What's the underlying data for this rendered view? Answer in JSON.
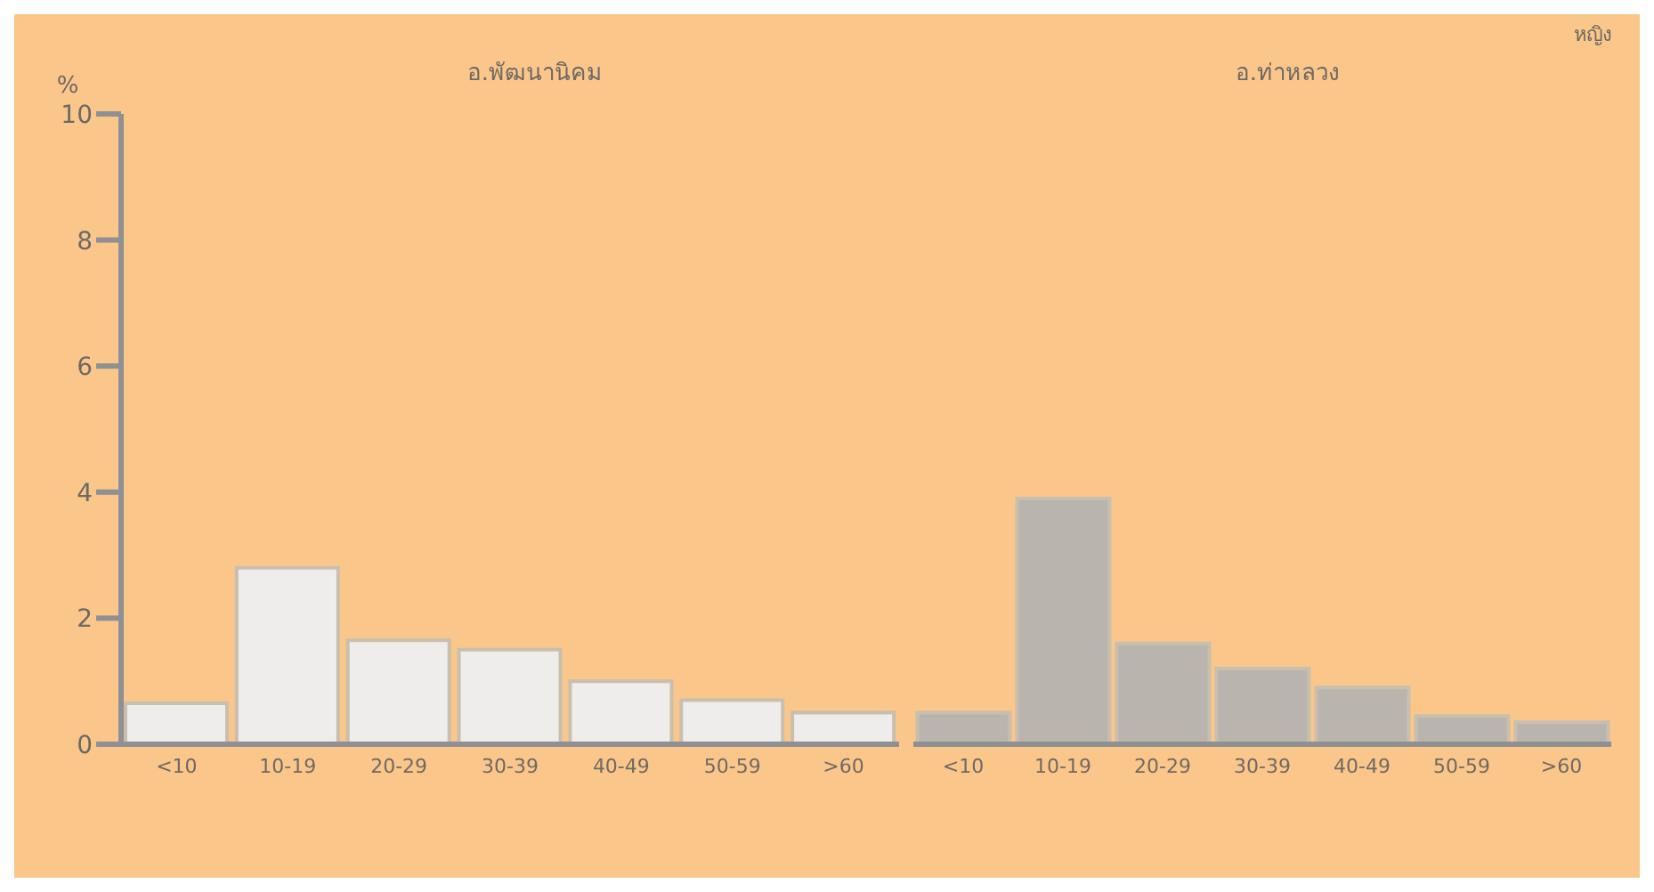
{
  "chart_data": [
    {
      "type": "bar",
      "title": "อ.พัฒนานิคม",
      "ylabel": "%",
      "categories": [
        "<10",
        "10-19",
        "20-29",
        "30-39",
        "40-49",
        "50-59",
        ">60"
      ],
      "values": [
        0.65,
        2.8,
        1.65,
        1.5,
        1.0,
        0.7,
        0.5
      ],
      "color": "#efedeb",
      "ylim": [
        0,
        10
      ],
      "yticks": [
        0,
        2,
        4,
        6,
        8,
        10
      ],
      "grid": false
    },
    {
      "type": "bar",
      "title": "อ.ท่าหลวง",
      "annotations": [
        "หญิง"
      ],
      "categories": [
        "<10",
        "10-19",
        "20-29",
        "30-39",
        "40-49",
        "50-59",
        ">60"
      ],
      "values": [
        0.5,
        3.9,
        1.6,
        1.2,
        0.9,
        0.45,
        0.35
      ],
      "color": "#b9b5ae",
      "ylim": [
        0,
        10
      ],
      "yticks": [
        0,
        2,
        4,
        6,
        8,
        10
      ],
      "grid": false,
      "tick_labels": "x"
    }
  ]
}
